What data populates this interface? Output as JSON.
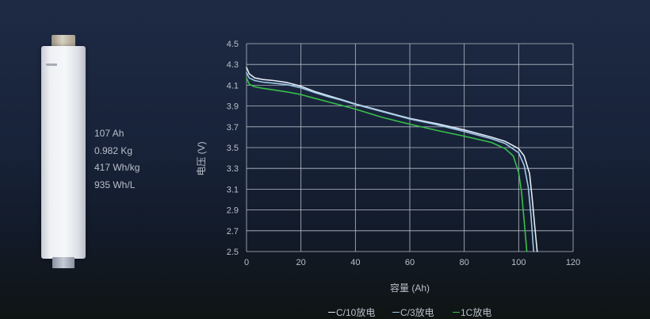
{
  "specs": [
    "107 Ah",
    "0.982 Kg",
    "417 Wh/kg",
    "935 Wh/L"
  ],
  "chart_data": {
    "type": "line",
    "title": "",
    "xlabel": "容量 (Ah)",
    "ylabel": "电压 (V)",
    "xlim": [
      0,
      120
    ],
    "ylim": [
      2.5,
      4.5
    ],
    "xticks": [
      "0",
      "20",
      "40",
      "60",
      "80",
      "100",
      "120"
    ],
    "yticks": [
      "2.5",
      "2.7",
      "2.9",
      "3.1",
      "3.3",
      "3.5",
      "3.7",
      "3.9",
      "4.1",
      "4.3",
      "4.5"
    ],
    "grid": true,
    "legend_position": "bottom-center",
    "series": [
      {
        "name": "C/10放电",
        "color": "#e4ebf6",
        "points": [
          [
            0,
            4.27
          ],
          [
            1,
            4.21
          ],
          [
            3,
            4.17
          ],
          [
            6,
            4.155
          ],
          [
            10,
            4.145
          ],
          [
            15,
            4.125
          ],
          [
            20,
            4.09
          ],
          [
            25,
            4.04
          ],
          [
            30,
            4.0
          ],
          [
            35,
            3.96
          ],
          [
            40,
            3.92
          ],
          [
            50,
            3.85
          ],
          [
            60,
            3.78
          ],
          [
            70,
            3.73
          ],
          [
            80,
            3.67
          ],
          [
            90,
            3.6
          ],
          [
            95,
            3.56
          ],
          [
            100,
            3.49
          ],
          [
            102,
            3.42
          ],
          [
            104,
            3.25
          ],
          [
            105,
            3.0
          ],
          [
            106,
            2.72
          ],
          [
            106.8,
            2.5
          ]
        ]
      },
      {
        "name": "C/3放电",
        "color": "#9fc9e6",
        "points": [
          [
            0,
            4.22
          ],
          [
            1,
            4.17
          ],
          [
            3,
            4.145
          ],
          [
            6,
            4.13
          ],
          [
            10,
            4.12
          ],
          [
            15,
            4.105
          ],
          [
            20,
            4.075
          ],
          [
            25,
            4.03
          ],
          [
            30,
            3.99
          ],
          [
            35,
            3.955
          ],
          [
            40,
            3.915
          ],
          [
            50,
            3.845
          ],
          [
            60,
            3.775
          ],
          [
            70,
            3.72
          ],
          [
            80,
            3.655
          ],
          [
            90,
            3.585
          ],
          [
            95,
            3.54
          ],
          [
            100,
            3.45
          ],
          [
            102,
            3.33
          ],
          [
            103.5,
            3.12
          ],
          [
            104.5,
            2.85
          ],
          [
            105.5,
            2.5
          ]
        ]
      },
      {
        "name": "1C放电",
        "color": "#38c04a",
        "points": [
          [
            0,
            4.17
          ],
          [
            1,
            4.11
          ],
          [
            3,
            4.085
          ],
          [
            6,
            4.07
          ],
          [
            10,
            4.055
          ],
          [
            15,
            4.035
          ],
          [
            20,
            4.01
          ],
          [
            25,
            3.975
          ],
          [
            30,
            3.94
          ],
          [
            35,
            3.905
          ],
          [
            40,
            3.87
          ],
          [
            50,
            3.79
          ],
          [
            60,
            3.725
          ],
          [
            70,
            3.665
          ],
          [
            80,
            3.61
          ],
          [
            90,
            3.55
          ],
          [
            95,
            3.49
          ],
          [
            98,
            3.42
          ],
          [
            100,
            3.26
          ],
          [
            101,
            3.08
          ],
          [
            102,
            2.8
          ],
          [
            103,
            2.5
          ]
        ]
      }
    ]
  }
}
